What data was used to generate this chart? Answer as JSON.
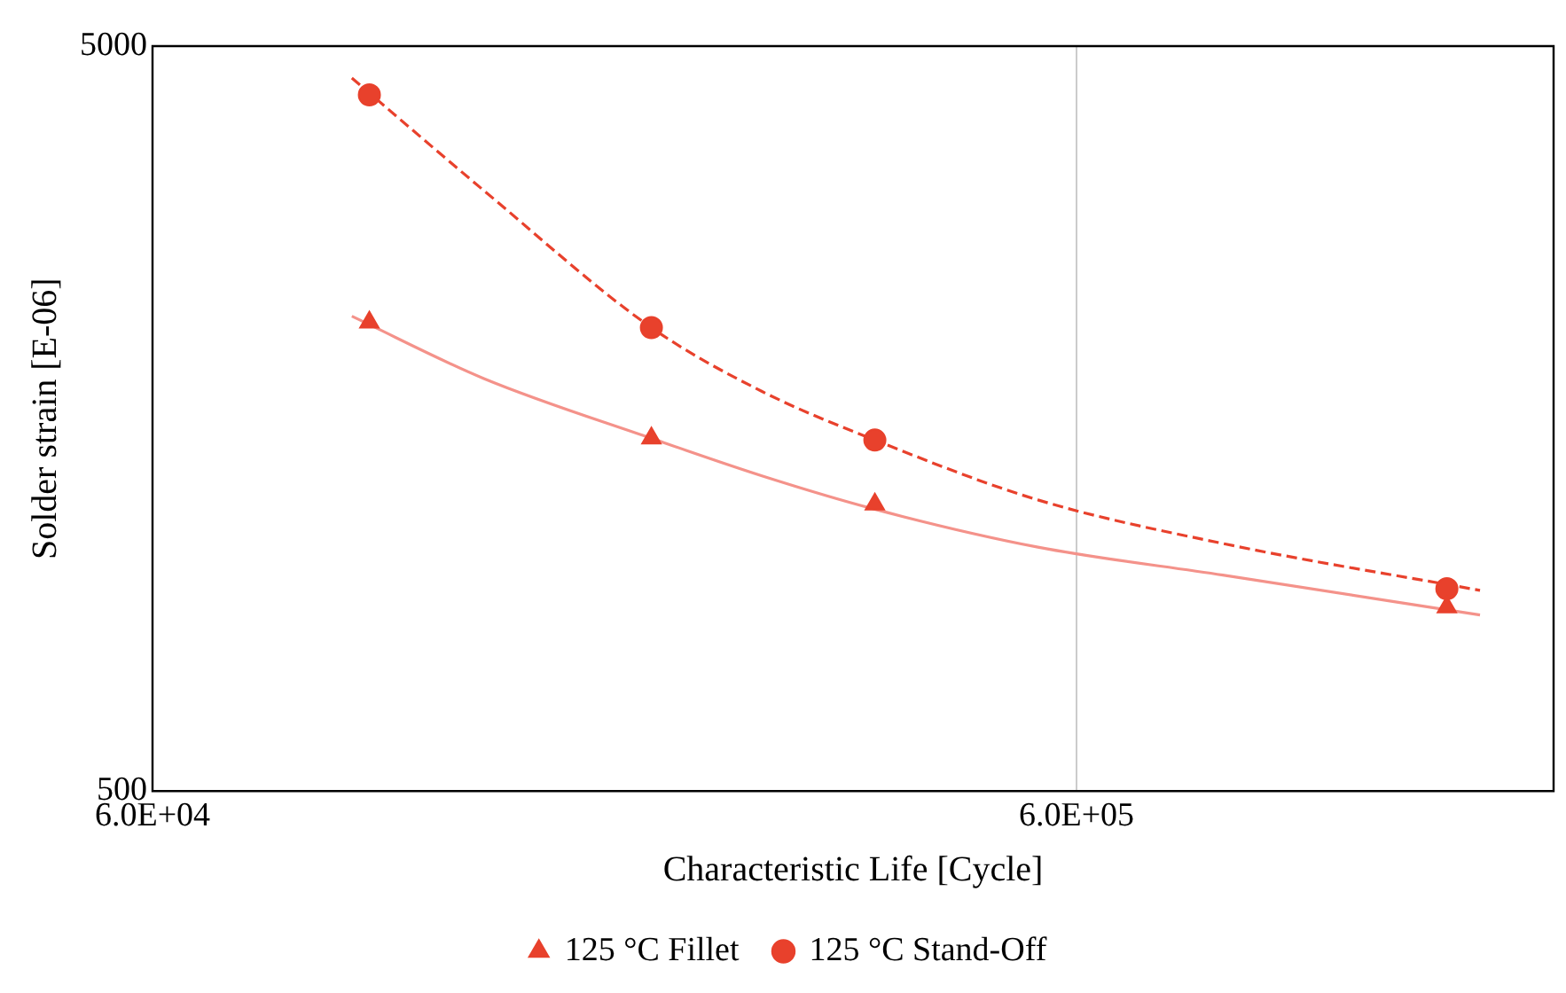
{
  "chart_data": {
    "type": "scatter",
    "xlabel": "Characteristic Life [Cycle]",
    "ylabel": "Solder strain [E-06]",
    "log": "xy",
    "xlim": [
      60000,
      1970000
    ],
    "ylim": [
      500,
      5000
    ],
    "xticks": [
      {
        "value": 60000,
        "label": "6.0E+04"
      },
      {
        "value": 600000,
        "label": "6.0E+05"
      }
    ],
    "yticks": [
      500,
      5000
    ],
    "grid": "x",
    "legend": "bottom",
    "series": [
      {
        "name": "125 °C Fillet",
        "marker": "triangle",
        "color": "#e8412c",
        "x": [
          103000,
          208000,
          363000,
          1510000
        ],
        "values": [
          2130,
          1488,
          1214,
          883
        ]
      },
      {
        "name": "125 °C Stand-Off",
        "marker": "circle",
        "color": "#e8412c",
        "x": [
          103000,
          208000,
          363000,
          1510000
        ],
        "values": [
          4300,
          2095,
          1480,
          935
        ]
      },
      {
        "type": "line",
        "marker": "none",
        "line_style": "solid",
        "color": "#f4928a",
        "x": [
          98600,
          137000,
          208000,
          274000,
          363000,
          545000,
          864000,
          1640000
        ],
        "values": [
          2170,
          1790,
          1488,
          1325,
          1195,
          1063,
          975,
          862
        ]
      },
      {
        "type": "line",
        "marker": "none",
        "line_style": "dashed",
        "color": "#e8412c",
        "x": [
          98600,
          137000,
          208000,
          274000,
          363000,
          545000,
          864000,
          1640000
        ],
        "values": [
          4530,
          3200,
          2095,
          1720,
          1480,
          1230,
          1075,
          930
        ]
      }
    ]
  }
}
